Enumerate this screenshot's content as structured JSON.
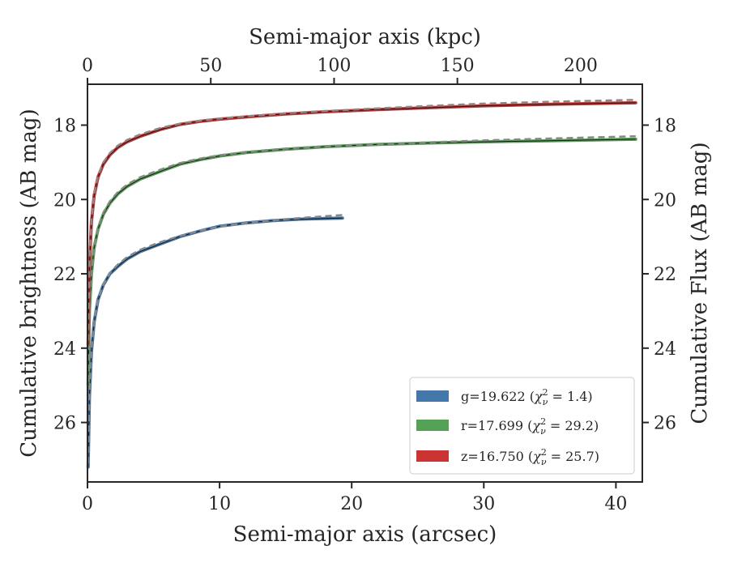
{
  "chart_data": {
    "type": "line",
    "title": "",
    "xlabel": "Semi-major axis (arcsec)",
    "ylabel": "Cumulative brightness (AB mag)",
    "x2label": "Semi-major axis (kpc)",
    "y2label": "Cumulative Flux (AB mag)",
    "xlim": [
      0,
      42
    ],
    "ylim": [
      27.6,
      16.9
    ],
    "x2lim": [
      0,
      225
    ],
    "y_inverted": true,
    "xticks": [
      "0",
      "10",
      "20",
      "30",
      "40"
    ],
    "yticks": [
      "18",
      "20",
      "22",
      "24",
      "26"
    ],
    "x2ticks": [
      "0",
      "50",
      "100",
      "150",
      "200"
    ],
    "y2ticks": [
      "18",
      "20",
      "22",
      "24",
      "26"
    ],
    "legend_position": "lower-right",
    "grid": false,
    "series": [
      {
        "name": "g",
        "legend": "g=19.622 (χ²ᵥ = 1.4)",
        "legend_main": "g=19.622 (",
        "legend_sub": "ν",
        "legend_sup": "2",
        "legend_tail": " = 1.4)",
        "color": "#4477aa",
        "x": [
          0.05,
          0.15,
          0.3,
          0.5,
          0.8,
          1.2,
          1.7,
          2.3,
          3.0,
          4.0,
          5.5,
          7.0,
          8.5,
          10.0,
          12.0,
          14.0,
          16.0,
          18.0,
          19.3
        ],
        "y": [
          27.2,
          25.3,
          24.1,
          23.3,
          22.7,
          22.3,
          22.0,
          21.8,
          21.6,
          21.4,
          21.2,
          21.0,
          20.85,
          20.72,
          20.63,
          20.57,
          20.53,
          20.51,
          20.5
        ],
        "model_x": [
          0.05,
          0.15,
          0.3,
          0.5,
          0.8,
          1.2,
          1.7,
          2.3,
          3.0,
          4.0,
          5.5,
          7.0,
          8.5,
          10.0,
          12.0,
          14.0,
          16.0,
          18.0,
          19.3
        ],
        "model_y": [
          27.1,
          25.2,
          24.0,
          23.25,
          22.68,
          22.28,
          21.97,
          21.75,
          21.55,
          21.35,
          21.15,
          20.98,
          20.84,
          20.73,
          20.63,
          20.56,
          20.5,
          20.45,
          20.42
        ]
      },
      {
        "name": "r",
        "legend": "r=17.699 (χ²ᵥ = 29.2)",
        "legend_main": "r=17.699 (",
        "legend_sub": "ν",
        "legend_sup": "2",
        "legend_tail": " = 29.2)",
        "color": "#55a155",
        "x": [
          0.05,
          0.15,
          0.3,
          0.5,
          0.8,
          1.2,
          1.7,
          2.3,
          3.0,
          4.0,
          5.5,
          7.0,
          8.5,
          10.0,
          12.0,
          15.0,
          18.0,
          22.0,
          26.0,
          30.0,
          35.0,
          41.5
        ],
        "y": [
          25.0,
          23.0,
          22.0,
          21.3,
          20.8,
          20.4,
          20.1,
          19.85,
          19.65,
          19.45,
          19.25,
          19.05,
          18.93,
          18.83,
          18.74,
          18.65,
          18.58,
          18.52,
          18.48,
          18.45,
          18.42,
          18.38
        ],
        "model_x": [
          0.05,
          0.15,
          0.3,
          0.5,
          0.8,
          1.2,
          1.7,
          2.3,
          3.0,
          4.0,
          5.5,
          7.0,
          8.5,
          10.0,
          12.0,
          15.0,
          18.0,
          22.0,
          26.0,
          30.0,
          35.0,
          41.5
        ],
        "model_y": [
          24.9,
          22.9,
          21.95,
          21.25,
          20.75,
          20.35,
          20.05,
          19.8,
          19.6,
          19.4,
          19.2,
          19.02,
          18.9,
          18.81,
          18.72,
          18.63,
          18.57,
          18.51,
          18.46,
          18.41,
          18.36,
          18.3
        ]
      },
      {
        "name": "z",
        "legend": "z=16.750 (χ²ᵥ = 25.7)",
        "legend_main": "z=16.750 (",
        "legend_sub": "ν",
        "legend_sup": "2",
        "legend_tail": " = 25.7)",
        "color": "#cc3333",
        "x": [
          0.05,
          0.15,
          0.3,
          0.5,
          0.8,
          1.2,
          1.7,
          2.3,
          3.0,
          4.0,
          5.5,
          7.0,
          8.5,
          10.0,
          12.0,
          15.0,
          18.0,
          22.0,
          26.0,
          30.0,
          35.0,
          41.5
        ],
        "y": [
          23.9,
          21.8,
          20.6,
          19.9,
          19.4,
          19.05,
          18.8,
          18.6,
          18.45,
          18.3,
          18.12,
          17.98,
          17.9,
          17.84,
          17.78,
          17.7,
          17.64,
          17.58,
          17.53,
          17.48,
          17.44,
          17.4
        ],
        "model_x": [
          0.05,
          0.15,
          0.3,
          0.5,
          0.8,
          1.2,
          1.7,
          2.3,
          3.0,
          4.0,
          5.5,
          7.0,
          8.5,
          10.0,
          12.0,
          15.0,
          18.0,
          22.0,
          26.0,
          30.0,
          35.0,
          41.5
        ],
        "model_y": [
          23.8,
          21.7,
          20.55,
          19.85,
          19.35,
          19.0,
          18.75,
          18.55,
          18.4,
          18.25,
          18.08,
          17.96,
          17.88,
          17.82,
          17.76,
          17.68,
          17.62,
          17.55,
          17.48,
          17.42,
          17.37,
          17.32
        ]
      }
    ],
    "model_style": "dashed",
    "model_color": "#888888"
  }
}
